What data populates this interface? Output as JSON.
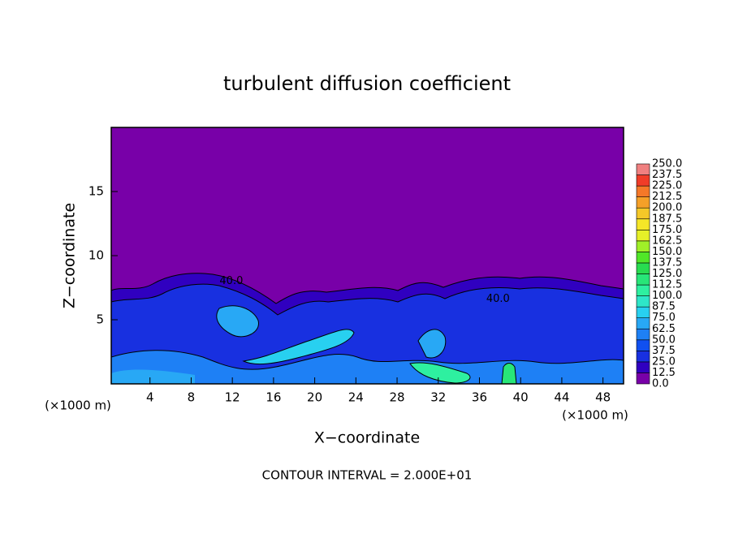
{
  "chart_data": {
    "type": "contour",
    "title": "turbulent diffusion coefficient",
    "xlabel": "X−coordinate",
    "ylabel": "Z−coordinate",
    "xunit": "(×1000 m)",
    "yunit": "(×1000 m)",
    "footer": "CONTOUR INTERVAL = 2.000E+01",
    "xlim": [
      0,
      50
    ],
    "ylim": [
      0,
      20
    ],
    "xticks": [
      4,
      8,
      12,
      16,
      20,
      24,
      28,
      32,
      36,
      40,
      44,
      48
    ],
    "yticks": [
      5,
      10,
      15
    ],
    "annotations": [
      {
        "text": "40.0",
        "x": 11.9,
        "z": 8.0
      },
      {
        "text": "40.0",
        "x": 37.8,
        "z": 6.6
      }
    ],
    "colorbar": {
      "ticks": [
        {
          "value": 0,
          "label": "0.0"
        },
        {
          "value": 12.5,
          "label": "12.5"
        },
        {
          "value": 25,
          "label": "25.0"
        },
        {
          "value": 37.5,
          "label": "37.5"
        },
        {
          "value": 50,
          "label": "50.0"
        },
        {
          "value": 62.5,
          "label": "62.5"
        },
        {
          "value": 75,
          "label": "75.0"
        },
        {
          "value": 87.5,
          "label": "87.5"
        },
        {
          "value": 100,
          "label": "100.0"
        },
        {
          "value": 112.5,
          "label": "112.5"
        },
        {
          "value": 125,
          "label": "125.0"
        },
        {
          "value": 137.5,
          "label": "137.5"
        },
        {
          "value": 150,
          "label": "150.0"
        },
        {
          "value": 162.5,
          "label": "162.5"
        },
        {
          "value": 175,
          "label": "175.0"
        },
        {
          "value": 187.5,
          "label": "187.5"
        },
        {
          "value": 200,
          "label": "200.0"
        },
        {
          "value": 212.5,
          "label": "212.5"
        },
        {
          "value": 225,
          "label": "225.0"
        },
        {
          "value": 237.5,
          "label": "237.5"
        },
        {
          "value": 250,
          "label": "250.0"
        }
      ],
      "colors": [
        "#7800a8",
        "#3000c0",
        "#1830e0",
        "#1050f0",
        "#1e80f5",
        "#28a8f5",
        "#28d0f0",
        "#2ee6c8",
        "#2ef0a0",
        "#28e678",
        "#28dc50",
        "#50e628",
        "#a0f028",
        "#e6f028",
        "#f5e628",
        "#f5c828",
        "#f5a028",
        "#f57828",
        "#f03c28",
        "#f08080"
      ]
    }
  }
}
